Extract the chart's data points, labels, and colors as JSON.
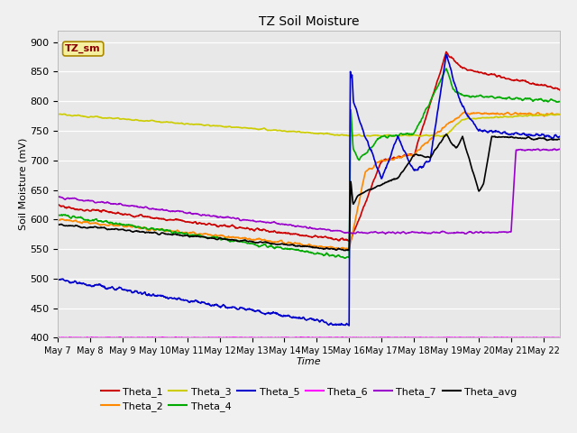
{
  "title": "TZ Soil Moisture",
  "xlabel": "Time",
  "ylabel": "Soil Moisture (mV)",
  "ylim": [
    400,
    920
  ],
  "xlim": [
    0,
    15.5
  ],
  "background_color": "#f0f0f0",
  "plot_bg_color": "#e8e8e8",
  "legend_label": "TZ_sm",
  "colors": {
    "Theta_1": "#cc0000",
    "Theta_2": "#ff8800",
    "Theta_3": "#cccc00",
    "Theta_4": "#00aa00",
    "Theta_5": "#0000cc",
    "Theta_6": "#ff00ff",
    "Theta_7": "#9900cc",
    "Theta_avg": "#000000"
  },
  "tick_labels": [
    "May 7",
    "May 8",
    "May 9",
    "May 10",
    "May 11",
    "May 12",
    "May 13",
    "May 14",
    "May 15",
    "May 16",
    "May 17",
    "May 18",
    "May 19",
    "May 20",
    "May 21",
    "May 22"
  ],
  "yticks": [
    400,
    450,
    500,
    550,
    600,
    650,
    700,
    750,
    800,
    850,
    900
  ]
}
